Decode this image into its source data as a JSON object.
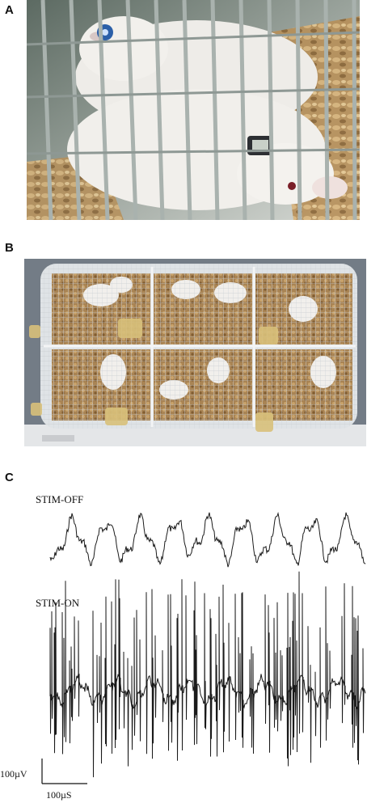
{
  "panels": {
    "a": {
      "letter": "A"
    },
    "b": {
      "letter": "B"
    },
    "c": {
      "letter": "C",
      "traces": [
        {
          "label": "STIM-OFF",
          "color": "#1a1a1a"
        },
        {
          "label": "STIM-ON",
          "color": "#1a1a1a"
        }
      ],
      "scale_bar": {
        "voltage_label": "100µV",
        "time_label": "100µS"
      }
    }
  },
  "colors": {
    "cage_bars": "#9ea8a4",
    "bedding": "#c2a06a",
    "rat_fur": "#eceae6",
    "water_bottle": "#d9c27a"
  }
}
